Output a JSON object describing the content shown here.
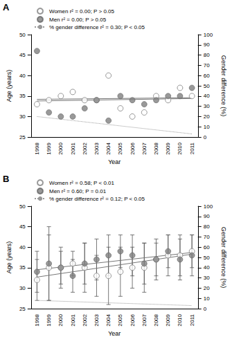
{
  "chart_data": [
    {
      "type": "scatter",
      "panel": "A",
      "xlabel": "Year",
      "ylabel": "Age (years)",
      "y2label": "Gender difference (%)",
      "categories": [
        "1998",
        "1999",
        "2000",
        "2001",
        "2002",
        "2003",
        "2004",
        "2005",
        "2006",
        "2007",
        "2008",
        "2009",
        "2010",
        "2011"
      ],
      "ylim": [
        25,
        50
      ],
      "yticks": [
        25,
        30,
        35,
        40,
        45,
        50
      ],
      "y2lim": [
        0,
        100
      ],
      "y2ticks": [
        0,
        10,
        20,
        30,
        40,
        50,
        60,
        70,
        80,
        90,
        100
      ],
      "grid": false,
      "series": [
        {
          "name": "Women r² = 0.00; P > 0.05",
          "color": "#808080",
          "marker": "open_circle",
          "values": [
            33,
            34,
            35,
            36,
            34,
            34,
            40,
            32,
            30,
            31,
            35,
            34,
            37,
            35
          ],
          "trend": [
            34.2,
            34.6
          ]
        },
        {
          "name": "Men r² = 0.00; P > 0.05",
          "color": "#808080",
          "marker": "filled_circle",
          "values": [
            46,
            31,
            30,
            30,
            32,
            34,
            29,
            35,
            34,
            33,
            34,
            35,
            35,
            37
          ],
          "trend": [
            33.8,
            34.4
          ]
        },
        {
          "name": "% gender difference r² = 0.30; P < 0.05",
          "color": "#999999",
          "type": "line",
          "line_style": "dotted",
          "axis": "y2",
          "trend": [
            20,
            3
          ]
        }
      ]
    },
    {
      "type": "scatter",
      "panel": "B",
      "xlabel": "Year",
      "ylabel": "Age (years)",
      "y2label": "Gender difference (%)",
      "categories": [
        "1998",
        "1999",
        "2000",
        "2001",
        "2002",
        "2003",
        "2004",
        "2005",
        "2006",
        "2007",
        "2008",
        "2009",
        "2010",
        "2011"
      ],
      "ylim": [
        25,
        50
      ],
      "yticks": [
        25,
        30,
        35,
        40,
        45,
        50
      ],
      "y2lim": [
        0,
        100
      ],
      "y2ticks": [
        0,
        10,
        20,
        30,
        40,
        50,
        60,
        70,
        80,
        90,
        100
      ],
      "grid": false,
      "series": [
        {
          "name": "Women r² = 0.58; P < 0.01",
          "color": "#808080",
          "marker": "open_circle",
          "values": [
            32,
            35,
            35,
            36,
            35,
            33,
            33,
            34,
            35,
            35,
            37,
            38,
            38,
            39
          ],
          "errors": [
            5,
            8,
            5,
            3,
            6,
            5,
            7,
            6,
            5,
            6,
            5,
            5,
            5,
            4
          ],
          "trend": [
            32.7,
            38.3
          ]
        },
        {
          "name": "Men r² = 0.60; P = 0.01",
          "color": "#808080",
          "marker": "filled_circle",
          "values": [
            34,
            36,
            35,
            33,
            36,
            37,
            38,
            39,
            38,
            36,
            37,
            39,
            37,
            38
          ],
          "errors": [
            5,
            9,
            4,
            4,
            5,
            5,
            5,
            4,
            5,
            5,
            4,
            4,
            5,
            5
          ],
          "trend": [
            34.5,
            38.7
          ]
        },
        {
          "name": "% gender difference r² = 0.12; P < 0.05",
          "color": "#999999",
          "type": "line",
          "line_style": "dotted",
          "axis": "y2",
          "trend": [
            8,
            3
          ]
        }
      ]
    }
  ]
}
